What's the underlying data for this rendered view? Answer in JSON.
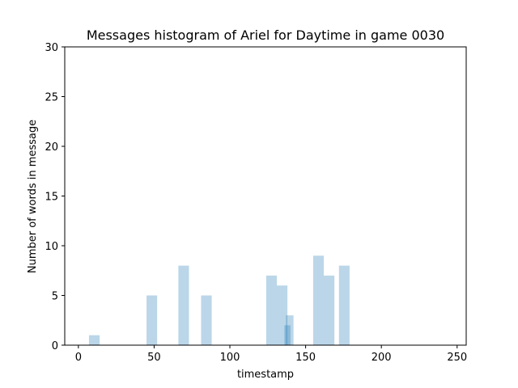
{
  "chart_data": {
    "type": "bar",
    "title": "Messages histogram of Ariel for Daytime in game 0030",
    "xlabel": "timestamp",
    "ylabel": "Number of words in message",
    "xlim": [
      -9,
      256
    ],
    "ylim": [
      0,
      30
    ],
    "xticks": [
      0,
      50,
      100,
      150,
      200,
      250
    ],
    "yticks": [
      0,
      5,
      10,
      15,
      20,
      25,
      30
    ],
    "bar_color": "#1f77b4",
    "bar_opacity": 0.3,
    "grid": false,
    "bars": [
      {
        "x0": 7,
        "x1": 14,
        "value": 1
      },
      {
        "x0": 45,
        "x1": 52,
        "value": 5
      },
      {
        "x0": 66,
        "x1": 73,
        "value": 8
      },
      {
        "x0": 81,
        "x1": 88,
        "value": 5
      },
      {
        "x0": 124,
        "x1": 131,
        "value": 7
      },
      {
        "x0": 131,
        "x1": 138,
        "value": 6
      },
      {
        "x0": 136,
        "x1": 140,
        "value": 2
      },
      {
        "x0": 137,
        "x1": 142,
        "value": 3
      },
      {
        "x0": 155,
        "x1": 162,
        "value": 9
      },
      {
        "x0": 162,
        "x1": 169,
        "value": 7
      },
      {
        "x0": 172,
        "x1": 179,
        "value": 8
      }
    ]
  }
}
